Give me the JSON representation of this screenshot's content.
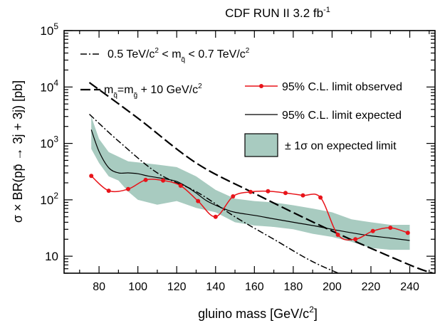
{
  "chart_data": {
    "type": "line",
    "title_main": "CDF RUN II  3.2 fb",
    "title_sup": "-1",
    "xlabel_main": "gluino mass [GeV/c",
    "xlabel_sup": "2",
    "xlabel_close": "]",
    "ylabel": "σ × BR(pp̄ →   3j + 3j)   [pb]",
    "y_scale": "log",
    "xlim": [
      62,
      253
    ],
    "ylim": [
      5,
      100000
    ],
    "x_ticks": [
      80,
      100,
      120,
      140,
      160,
      180,
      200,
      220,
      240
    ],
    "y_ticks": [
      {
        "value": 10,
        "label": "10"
      },
      {
        "value": 100,
        "base": "10",
        "exp": "2"
      },
      {
        "value": 1000,
        "base": "10",
        "exp": "3"
      },
      {
        "value": 10000,
        "base": "10",
        "exp": "4"
      },
      {
        "value": 100000,
        "base": "10",
        "exp": "5"
      }
    ],
    "legend": {
      "dashdot": "0.5 TeV/c² < m_q̃ < 0.7 TeV/c²",
      "dashdot_parts": [
        "0.5 TeV/c",
        "2",
        " < m",
        "q̃",
        " < 0.7 TeV/c",
        "2"
      ],
      "dashed": "m_q̃ = m_g̃ + 10 GeV/c²",
      "dashed_parts": [
        "m",
        "q̃",
        "=m",
        "g̃",
        " + 10 GeV/c",
        "2"
      ],
      "observed": "95% C.L. limit observed",
      "expected": "95% C.L. limit expected",
      "band": "± 1σ on expected limit"
    },
    "colors": {
      "observed": "#e8141a",
      "band": "#a8cbc0",
      "frame": "#000000"
    },
    "series": [
      {
        "key": "observed",
        "x": [
          76,
          85,
          95,
          104,
          113,
          122,
          131,
          140,
          149,
          158,
          167,
          176,
          185,
          194,
          203,
          212,
          221,
          230,
          239
        ],
        "y": [
          265,
          145,
          155,
          225,
          220,
          178,
          95,
          50,
          115,
          138,
          142,
          132,
          120,
          110,
          24,
          20,
          28,
          32,
          26
        ]
      },
      {
        "key": "expected",
        "x": [
          76,
          80,
          85,
          90,
          95,
          100,
          105,
          110,
          115,
          120,
          125,
          130,
          135,
          140,
          145,
          150,
          160,
          170,
          180,
          190,
          200,
          210,
          220,
          230,
          240
        ],
        "y": [
          1750,
          720,
          370,
          300,
          300,
          290,
          265,
          248,
          232,
          212,
          172,
          132,
          98,
          80,
          68,
          60,
          53,
          46,
          40,
          35,
          30,
          26,
          23,
          21,
          19
        ]
      },
      {
        "key": "band",
        "x": [
          76,
          80,
          85,
          90,
          95,
          100,
          110,
          120,
          130,
          140,
          150,
          160,
          170,
          180,
          190,
          200,
          210,
          220,
          230,
          240
        ],
        "upper": [
          3000,
          1200,
          700,
          580,
          480,
          460,
          420,
          380,
          260,
          150,
          105,
          95,
          90,
          80,
          70,
          60,
          45,
          40,
          36,
          36
        ],
        "lower": [
          800,
          450,
          260,
          220,
          140,
          100,
          82,
          95,
          72,
          60,
          40,
          35,
          33,
          30,
          25,
          22,
          18,
          14,
          13,
          13
        ]
      },
      {
        "key": "dashdot",
        "x": [
          75,
          90,
          110,
          130,
          150,
          170,
          190,
          210
        ],
        "y": [
          3300,
          1100,
          300,
          140,
          50,
          20,
          8,
          4
        ]
      },
      {
        "key": "dashed",
        "x": [
          75,
          100,
          130,
          160,
          200,
          240,
          252
        ],
        "y": [
          12000,
          2800,
          450,
          130,
          28,
          7,
          5
        ]
      }
    ]
  }
}
